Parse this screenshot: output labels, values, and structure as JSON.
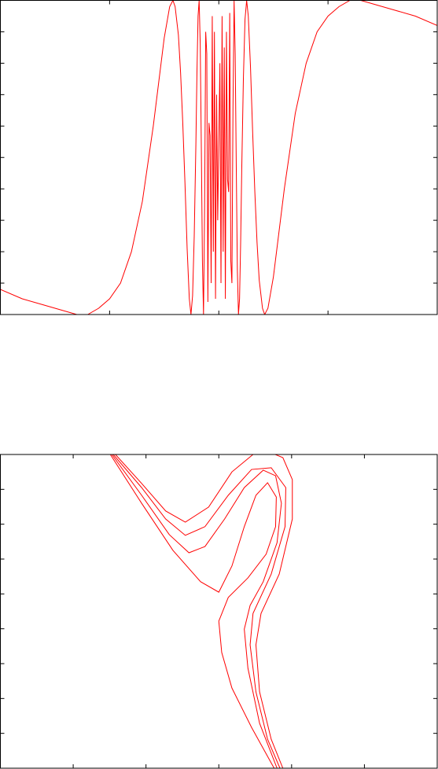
{
  "chart_data": [
    {
      "type": "line",
      "xlim": [
        -2,
        2
      ],
      "ylim": [
        0,
        1
      ],
      "xticks": [
        -1,
        0,
        1
      ],
      "yticks": [
        0.1,
        0.2,
        0.3,
        0.4,
        0.5,
        0.6,
        0.7,
        0.8,
        0.9
      ],
      "series": [
        {
          "color": "#ff0000",
          "x": [
            -2,
            -1.8,
            -1.6,
            -1.4,
            -1.3,
            -1.2,
            -1.1,
            -1,
            -0.9,
            -0.8,
            -0.7,
            -0.6,
            -0.55,
            -0.5,
            -0.45,
            -0.42,
            -0.4,
            -0.37,
            -0.35,
            -0.33,
            -0.31,
            -0.29,
            -0.27,
            -0.255,
            -0.24,
            -0.225,
            -0.21,
            -0.2,
            -0.19,
            -0.18,
            -0.17,
            -0.16,
            -0.15,
            -0.14,
            -0.13,
            -0.12,
            -0.11,
            -0.1,
            -0.09,
            -0.08,
            -0.07,
            -0.06,
            -0.05,
            -0.04,
            -0.03,
            -0.02,
            -0.01,
            0.01,
            0.02,
            0.03,
            0.04,
            0.05,
            0.06,
            0.07,
            0.08,
            0.09,
            0.1,
            0.11,
            0.12,
            0.13,
            0.14,
            0.15,
            0.16,
            0.17,
            0.18,
            0.19,
            0.2,
            0.21,
            0.225,
            0.24,
            0.255,
            0.27,
            0.29,
            0.31,
            0.33,
            0.35,
            0.37,
            0.4,
            0.42,
            0.45,
            0.5,
            0.55,
            0.6,
            0.7,
            0.8,
            0.9,
            1,
            1.1,
            1.2,
            1.3,
            1.4,
            1.6,
            1.8,
            2
          ],
          "values": [
            0.08,
            0.05,
            0.03,
            0.01,
            0,
            0,
            0.02,
            0.05,
            0.1,
            0.2,
            0.36,
            0.6,
            0.74,
            0.88,
            0.98,
            1,
            0.98,
            0.89,
            0.77,
            0.61,
            0.42,
            0.21,
            0.05,
            0,
            0.06,
            0.25,
            0.54,
            0.77,
            0.95,
            1,
            0.86,
            0.53,
            0.17,
            0,
            0.34,
            0.9,
            0.83,
            0.04,
            0.61,
            0.57,
            0.1,
            0.95,
            0.2,
            0.9,
            0.05,
            0.7,
            0.3,
            0.8,
            0.1,
            0.95,
            0.2,
            0.85,
            0.05,
            0.9,
            0.43,
            0.39,
            0.96,
            0.17,
            0.1,
            0.66,
            1,
            0.83,
            0.47,
            0.14,
            0,
            0.05,
            0.23,
            0.46,
            0.75,
            0.94,
            1,
            0.95,
            0.79,
            0.58,
            0.39,
            0.23,
            0.11,
            0.02,
            0,
            0.02,
            0.12,
            0.26,
            0.4,
            0.64,
            0.8,
            0.9,
            0.95,
            0.98,
            1,
            1,
            0.99,
            0.97,
            0.95,
            0.92
          ]
        }
      ]
    },
    {
      "type": "line",
      "xlim": [
        -3,
        3
      ],
      "ylim": [
        0,
        9
      ],
      "xticks": [
        -2,
        -1,
        0,
        1,
        2
      ],
      "yticks": [
        1,
        2,
        3,
        4,
        5,
        6,
        7,
        8
      ],
      "series": [
        {
          "color": "#ff0000",
          "x": [
            -1.49,
            -1.06,
            -0.63,
            -0.25,
            0,
            0.18,
            0.35,
            0.51,
            0.67,
            0.79,
            0.78,
            0.65,
            0.4,
            0.13,
            0,
            0.04,
            0.18,
            0.45,
            0.76
          ],
          "values": [
            9,
            7.6,
            6.25,
            5.35,
            5.05,
            5.8,
            6.93,
            7.83,
            8.19,
            7.78,
            6.93,
            6.14,
            5.46,
            4.9,
            4.22,
            3.32,
            2.3,
            1.17,
            0
          ]
        },
        {
          "color": "#ff0000",
          "x": [
            -1.47,
            -1.06,
            -0.68,
            -0.41,
            -0.19,
            0.08,
            0.35,
            0.61,
            0.78,
            0.86,
            0.8,
            0.61,
            0.43,
            0.35,
            0.4,
            0.56,
            0.8
          ],
          "values": [
            9,
            7.83,
            6.7,
            6.18,
            6.36,
            7.15,
            8.05,
            8.55,
            8.39,
            7.6,
            6.47,
            5.35,
            4.67,
            3.99,
            2.87,
            1.29,
            0
          ]
        },
        {
          "color": "#ff0000",
          "x": [
            -1.45,
            -1.06,
            -0.73,
            -0.46,
            -0.19,
            0.13,
            0.45,
            0.72,
            0.92,
            0.91,
            0.72,
            0.47,
            0.43,
            0.51,
            0.67,
            0.84
          ],
          "values": [
            9,
            8.05,
            7.15,
            6.68,
            6.93,
            7.83,
            8.57,
            8.62,
            8.05,
            6.93,
            5.57,
            4.44,
            3.54,
            2.19,
            0.83,
            0
          ]
        },
        {
          "color": "#ff0000",
          "x": [
            -1.42,
            -1.06,
            -0.73,
            -0.46,
            -0.14,
            0.18,
            0.47,
            0.67,
            0.88,
            1.01,
            1.01,
            0.83,
            0.58,
            0.51,
            0.56,
            0.72,
            0.88
          ],
          "values": [
            9,
            8.17,
            7.38,
            7.06,
            7.49,
            8.5,
            9,
            9.09,
            8.91,
            8.28,
            7.15,
            5.57,
            4.44,
            3.54,
            2.19,
            0.83,
            0
          ]
        }
      ]
    }
  ]
}
